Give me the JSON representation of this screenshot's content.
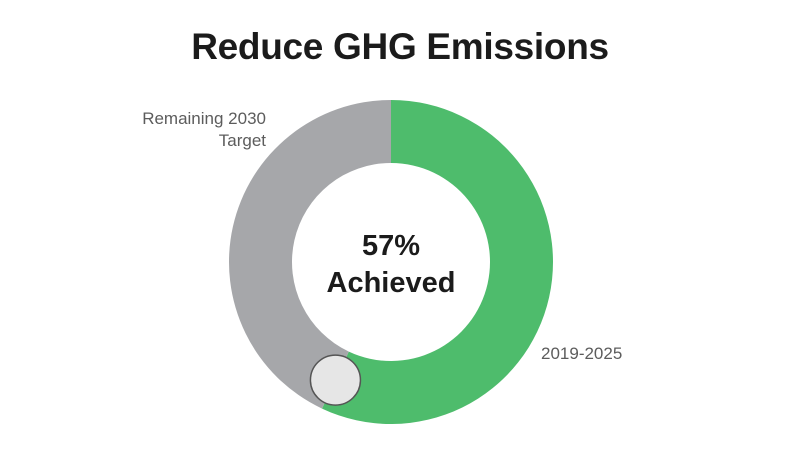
{
  "chart_data": {
    "type": "pie",
    "title": "Reduce GHG Emissions",
    "slices": [
      {
        "label": "2019-2025",
        "value": 57,
        "color": "#4ebc6c"
      },
      {
        "label": "Remaining 2030 Target",
        "value": 43,
        "color": "#a6a7aa"
      }
    ],
    "center_label": {
      "value": "57%",
      "text": "Achieved"
    },
    "marker_color": "#e6e6e6"
  }
}
